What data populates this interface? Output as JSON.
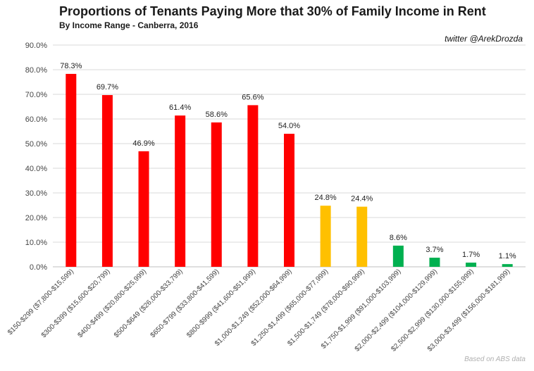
{
  "title": "Proportions of Tenants Paying More that 30% of Family Income in Rent",
  "subtitle": "By Income Range - Canberra, 2016",
  "credit": "twitter @ArekDrozda",
  "source": "Based on ABS  data",
  "chart_data": {
    "type": "bar",
    "title": "Proportions of Tenants Paying More that 30% of Family Income in Rent",
    "subtitle": "By Income Range - Canberra, 2016",
    "xlabel": "",
    "ylabel": "",
    "ylim": [
      0,
      90
    ],
    "yticks": [
      "0.0%",
      "10.0%",
      "20.0%",
      "30.0%",
      "40.0%",
      "50.0%",
      "60.0%",
      "70.0%",
      "80.0%",
      "90.0%"
    ],
    "grid": true,
    "categories": [
      "$150-$299 ($7,800-$15,599)",
      "$300-$399 ($15,600-$20,799)",
      "$400-$499 ($20,800-$25,999)",
      "$500-$649 ($26,000-$33,799)",
      "$650-$799 ($33,800-$41,599)",
      "$800-$999 ($41,600-$51,999)",
      "$1,000-$1,249 ($52,000-$64,999)",
      "$1,250-$1,499 ($65,000-$77,999)",
      "$1,500-$1,749 ($78,000-$90,999)",
      "$1,750-$1,999 ($91,000-$103,999)",
      "$2,000-$2,499 ($104,000-$129,999)",
      "$2,500-$2,999 ($130,000-$155,999)",
      "$3,000-$3,499 ($156,000-$181,999)"
    ],
    "values": [
      78.3,
      69.7,
      46.9,
      61.4,
      58.6,
      65.6,
      54.0,
      24.8,
      24.4,
      8.6,
      3.7,
      1.7,
      1.1
    ],
    "data_labels": [
      "78.3%",
      "69.7%",
      "46.9%",
      "61.4%",
      "58.6%",
      "65.6%",
      "54.0%",
      "24.8%",
      "24.4%",
      "8.6%",
      "3.7%",
      "1.7%",
      "1.1%"
    ],
    "colors": [
      "#ff0000",
      "#ff0000",
      "#ff0000",
      "#ff0000",
      "#ff0000",
      "#ff0000",
      "#ff0000",
      "#ffc000",
      "#ffc000",
      "#00b050",
      "#00b050",
      "#00b050",
      "#00b050"
    ]
  }
}
